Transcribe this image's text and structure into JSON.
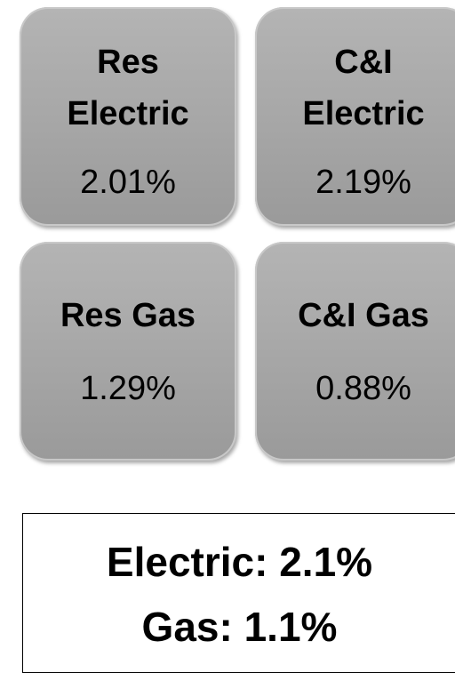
{
  "tiles": [
    {
      "title": [
        "Res",
        "Electric"
      ],
      "value": "2.01%"
    },
    {
      "title": [
        "C&I",
        "Electric"
      ],
      "value": "2.19%"
    },
    {
      "title": [
        "Res Gas"
      ],
      "value": "1.29%"
    },
    {
      "title": [
        "C&I Gas"
      ],
      "value": "0.88%"
    }
  ],
  "summary": {
    "lines": [
      "Electric: 2.1%",
      "Gas: 1.1%"
    ]
  }
}
